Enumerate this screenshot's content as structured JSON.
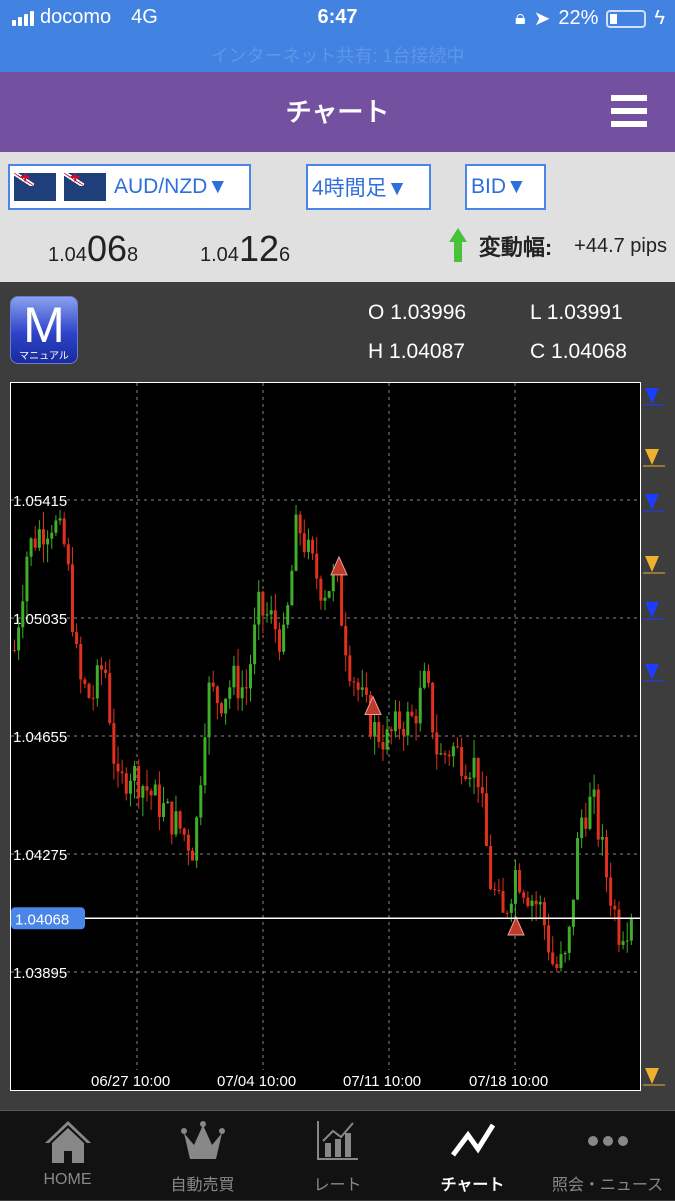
{
  "status_bar": {
    "carrier": "docomo",
    "network": "4G",
    "time": "6:47",
    "battery": "22%",
    "battery_level": 0.22,
    "tethering": "インターネット共有: 1台接続中"
  },
  "header": {
    "title": "チャート",
    "menu_icon": "hamburger-icon"
  },
  "selectors": {
    "pair": "AUD/NZD▼",
    "timeframe": "4時間足▼",
    "price_type": "BID▼"
  },
  "quote": {
    "bid": {
      "prefix": "1.04",
      "big": "06",
      "suffix": "8"
    },
    "ask": {
      "prefix": "1.04",
      "big": "12",
      "suffix": "6"
    },
    "change_label": "変動幅:",
    "change_value": "+44.7 pips",
    "change_color": "#47c23a"
  },
  "ohlc": {
    "mode_button": "M",
    "mode_sub": "マニュアル",
    "o_label": "O",
    "o": "1.03996",
    "h_label": "H",
    "h": "1.04087",
    "l_label": "L",
    "l": "1.03991",
    "c_label": "C",
    "c": "1.04068"
  },
  "chart_data": {
    "type": "candlestick",
    "ylim": [
      1.03515,
      1.05792
    ],
    "y_ticks": [
      "1.05415",
      "1.05035",
      "1.04655",
      "1.04275",
      "1.03895"
    ],
    "x_ticks": [
      "06/27 10:00",
      "07/04 10:00",
      "07/11 10:00",
      "07/18 10:00"
    ],
    "current_price": "1.04068",
    "up_color": "#3fae2a",
    "down_color": "#e0301e",
    "close_path": [
      1.04932,
      1.05254,
      1.05318,
      1.0535,
      1.05254,
      1.04835,
      1.04771,
      1.049,
      1.04481,
      1.04546,
      1.045,
      1.04449,
      1.044,
      1.04352,
      1.04288,
      1.04803,
      1.04771,
      1.04835,
      1.04803,
      1.05061,
      1.05029,
      1.0495,
      1.05351,
      1.05222,
      1.05125,
      1.0516,
      1.049,
      1.04771,
      1.04674,
      1.04642,
      1.047,
      1.04707,
      1.04835,
      1.04578,
      1.0462,
      1.04578,
      1.0456,
      1.04191,
      1.04062,
      1.04223,
      1.0415,
      1.04095,
      1.03902,
      1.03934,
      1.04384,
      1.0445,
      1.04223,
      1.0403,
      1.04068
    ],
    "signals": [
      1.052,
      1.0475,
      1.0404
    ]
  },
  "tabs": [
    {
      "label": "HOME",
      "icon": "home-icon"
    },
    {
      "label": "自動売買",
      "icon": "crown-icon"
    },
    {
      "label": "レート",
      "icon": "rate-chart-icon"
    },
    {
      "label": "チャート",
      "icon": "line-chart-icon",
      "active": true
    },
    {
      "label": "照会・ニュース",
      "icon": "more-icon"
    }
  ]
}
